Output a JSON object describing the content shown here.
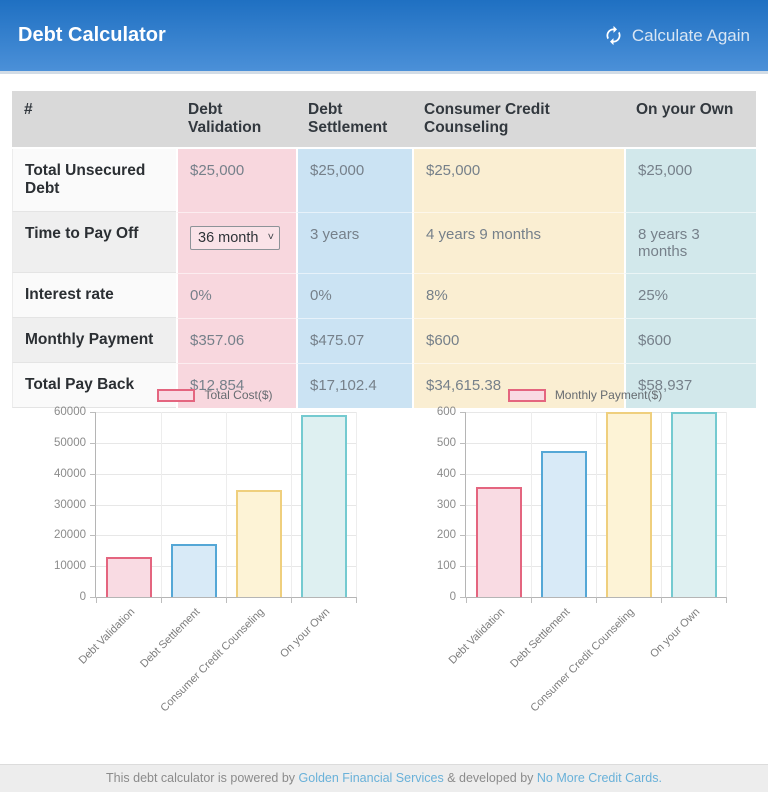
{
  "header": {
    "title": "Debt Calculator",
    "action_label": "Calculate Again"
  },
  "icons": {
    "refresh": "circular-refresh-arrows",
    "chevron_down": "˅"
  },
  "table": {
    "columns": [
      "#",
      "Debt Validation",
      "Debt Settlement",
      "Consumer Credit Counseling",
      "On your Own"
    ],
    "rows": [
      {
        "label": "Total Unsecured Debt",
        "values": [
          "$25,000",
          "$25,000",
          "$25,000",
          "$25,000"
        ]
      },
      {
        "label": "Time to Pay Off",
        "values": [
          "36 month",
          "3 years",
          "4 years 9 months",
          "8 years 3 months"
        ]
      },
      {
        "label": "Interest rate",
        "values": [
          "0%",
          "0%",
          "8%",
          "25%"
        ]
      },
      {
        "label": "Monthly Payment",
        "values": [
          "$357.06",
          "$475.07",
          "$600",
          "$600"
        ]
      },
      {
        "label": "Total Pay Back",
        "values": [
          "$12,854",
          "$17,102.4",
          "$34,615.38",
          "$58,937"
        ]
      }
    ]
  },
  "colors": {
    "header_gradient_top": "#1f70c2",
    "header_gradient_bottom": "#4b90d8",
    "cell_pink": "#f8d7de",
    "cell_blue": "#cbe3f3",
    "cell_cream": "#faeed2",
    "cell_teal": "#d2e8eb",
    "footer_link_blue": "#69b1d9"
  },
  "chart_data": [
    {
      "type": "bar",
      "legend": "Total Cost($)",
      "legend_position": "top",
      "grid": true,
      "categories": [
        "Debt Validation",
        "Debt Settlement",
        "Consumer Credit Counseling",
        "On your Own"
      ],
      "values": [
        12854,
        17102.4,
        34615.38,
        58937
      ],
      "xlabel": "",
      "ylabel": "",
      "ylim": [
        0,
        60000
      ],
      "ytick_step": 10000,
      "bar_fill_colors": [
        "#f9dbe3",
        "#d8eaf7",
        "#fdf3d6",
        "#def0f1"
      ],
      "bar_border_colors": [
        "#e4657f",
        "#54a7d6",
        "#efcf7d",
        "#74cad0"
      ]
    },
    {
      "type": "bar",
      "legend": "Monthly Payment($)",
      "legend_position": "top",
      "grid": true,
      "categories": [
        "Debt Validation",
        "Debt Settlement",
        "Consumer Credit Counseling",
        "On your Own"
      ],
      "values": [
        357.06,
        475.07,
        600,
        600
      ],
      "xlabel": "",
      "ylabel": "",
      "ylim": [
        0,
        600
      ],
      "ytick_step": 100,
      "bar_fill_colors": [
        "#f9dbe3",
        "#d8eaf7",
        "#fdf3d6",
        "#def0f1"
      ],
      "bar_border_colors": [
        "#e4657f",
        "#54a7d6",
        "#efcf7d",
        "#74cad0"
      ]
    }
  ],
  "footer": {
    "prefix": "This debt calculator is powered by",
    "link1": "Golden Financial Services",
    "middle": "& developed by",
    "link2": "No More Credit Cards."
  }
}
